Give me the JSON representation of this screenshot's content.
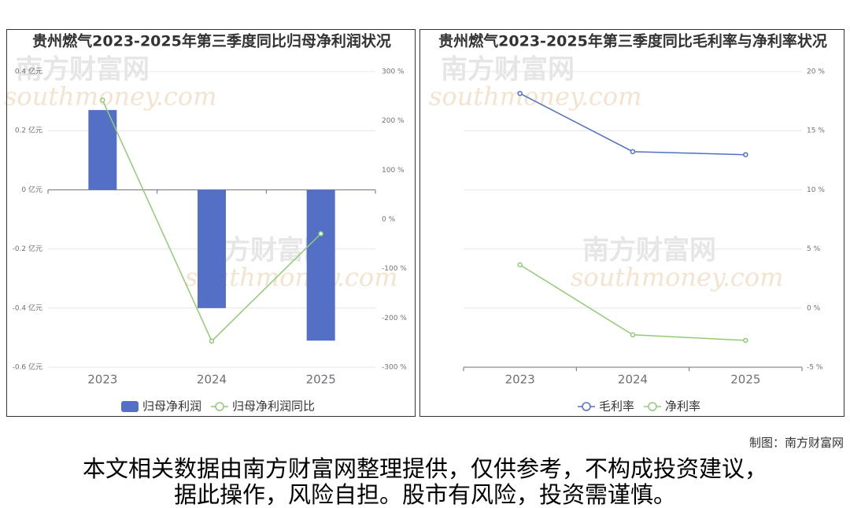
{
  "chart_data": [
    {
      "type": "bar",
      "title": "贵州燃气2023-2025年第三季度同比归母净利润状况",
      "categories": [
        "2023",
        "2024",
        "2025"
      ],
      "series": [
        {
          "name": "归母净利润",
          "type": "bar",
          "color": "#5470c6",
          "values": [
            0.27,
            -0.4,
            -0.51
          ]
        },
        {
          "name": "归母净利润同比",
          "type": "line",
          "axis": "y2",
          "color": "#91cc75",
          "values": [
            242,
            -247,
            -29
          ]
        }
      ],
      "ylim": [
        -0.6,
        0.4
      ],
      "yticks": [
        {
          "value": -0.6,
          "label": "-0.6 亿元"
        },
        {
          "value": -0.4,
          "label": "-0.4 亿元"
        },
        {
          "value": -0.2,
          "label": "-0.2 亿元"
        },
        {
          "value": 0,
          "label": "0 亿元"
        },
        {
          "value": 0.2,
          "label": "0.2 亿元"
        },
        {
          "value": 0.4,
          "label": "0.4 亿元"
        }
      ],
      "y2lim": [
        -300,
        300
      ],
      "y2ticks": [
        {
          "value": -300,
          "label": "-300 %"
        },
        {
          "value": -200,
          "label": "-200 %"
        },
        {
          "value": -100,
          "label": "-100 %"
        },
        {
          "value": 0,
          "label": "0 %"
        },
        {
          "value": 100,
          "label": "100 %"
        },
        {
          "value": 200,
          "label": "200 %"
        },
        {
          "value": 300,
          "label": "300 %"
        }
      ],
      "grid": true,
      "legend": "bottom"
    },
    {
      "type": "line",
      "title": "贵州燃气2023-2025年第三季度同比毛利率与净利率状况",
      "categories": [
        "2023",
        "2024",
        "2025"
      ],
      "series": [
        {
          "name": "毛利率",
          "type": "line",
          "color": "#5470c6",
          "values": [
            18.15,
            13.23,
            12.97
          ]
        },
        {
          "name": "净利率",
          "type": "line",
          "color": "#91cc75",
          "values": [
            3.66,
            -2.26,
            -2.73
          ]
        }
      ],
      "ylim": [
        -5,
        20
      ],
      "yticks": [
        {
          "value": -5,
          "label": "-5 %"
        },
        {
          "value": 0,
          "label": "0 %"
        },
        {
          "value": 5,
          "label": "5 %"
        },
        {
          "value": 10,
          "label": "10 %"
        },
        {
          "value": 15,
          "label": "15 %"
        },
        {
          "value": 20,
          "label": "20 %"
        }
      ],
      "y_axis_side": "right",
      "grid": true,
      "legend": "bottom"
    }
  ],
  "watermark": [
    "南方财富网",
    "southmoney.com"
  ],
  "credit": "制图：南方财富网",
  "disclaimer": "本文相关数据由南方财富网整理提供，仅供参考，不构成投资建议，据此操作，风险自担。股市有风险，投资需谨慎。"
}
